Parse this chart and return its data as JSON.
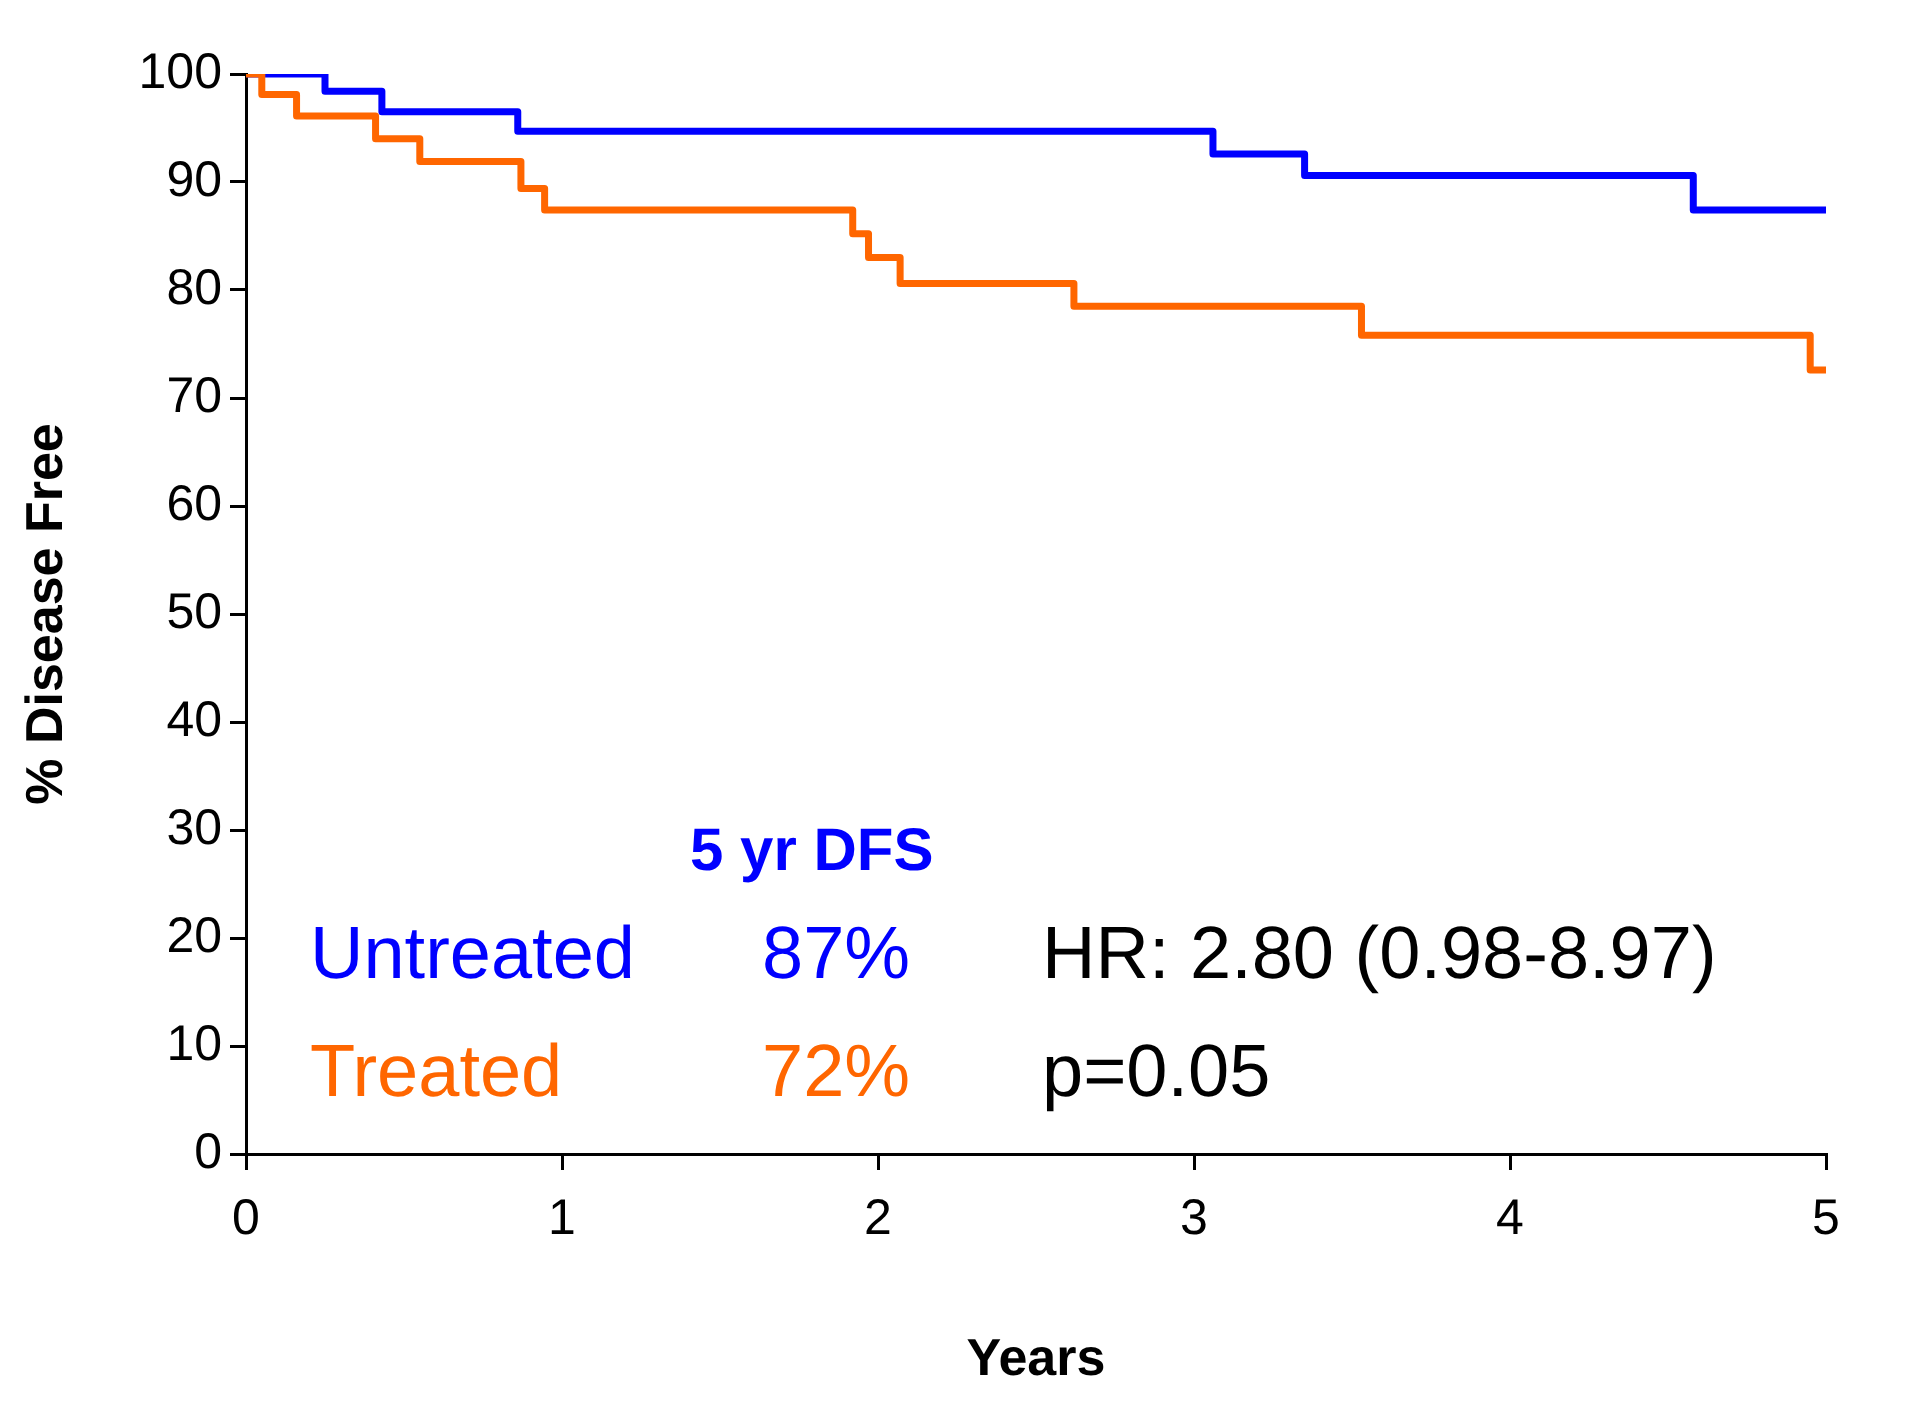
{
  "chart_data": {
    "type": "step",
    "xlabel": "Years",
    "ylabel": "% Disease Free",
    "xlim": [
      0,
      5
    ],
    "xticks": [
      0,
      1,
      2,
      3,
      4,
      5
    ],
    "ylim": [
      0,
      100
    ],
    "yticks": [
      0,
      10,
      20,
      30,
      40,
      50,
      60,
      70,
      80,
      90,
      100
    ],
    "grid": false,
    "legend": false,
    "series": [
      {
        "name": "Untreated",
        "color": "#0000ff",
        "x": [
          0,
          0.25,
          0.43,
          0.86,
          3.06,
          3.35,
          4.58,
          5
        ],
        "values": [
          100,
          98.4,
          96.5,
          94.7,
          92.6,
          90.6,
          87.4,
          87.4
        ]
      },
      {
        "name": "Treated",
        "color": "#ff6600",
        "x": [
          0,
          0.05,
          0.16,
          0.41,
          0.55,
          0.87,
          0.945,
          1.92,
          1.97,
          2.07,
          2.62,
          3.53,
          4.95,
          5
        ],
        "values": [
          100,
          98.1,
          96.1,
          94,
          91.9,
          89.4,
          87.4,
          85.2,
          83,
          80.6,
          78.5,
          75.8,
          72.6,
          72.6
        ]
      }
    ],
    "annotations": [
      "5 yr DFS",
      "87%",
      "72%",
      "HR: 2.80 (0.98-8.97)",
      "p=0.05"
    ]
  }
}
